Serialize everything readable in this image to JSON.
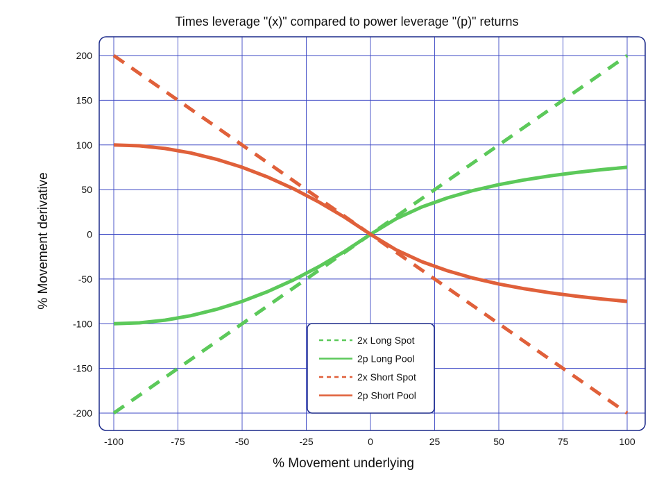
{
  "chart_data": {
    "type": "line",
    "title": "Times leverage \"(x)\" compared to power leverage \"(p)\" returns",
    "xlabel": "% Movement underlying",
    "ylabel": "% Movement derivative",
    "xlim": [
      -100,
      100
    ],
    "ylim": [
      -200,
      200
    ],
    "xticks": [
      -100,
      -75,
      -50,
      -25,
      0,
      25,
      50,
      75,
      100
    ],
    "yticks": [
      200,
      150,
      100,
      50,
      0,
      -50,
      -100,
      -150,
      -200
    ],
    "grid": true,
    "legend_position": "bottom-center",
    "x": [
      -100,
      -90,
      -80,
      -70,
      -60,
      -50,
      -40,
      -30,
      -20,
      -10,
      0,
      10,
      20,
      30,
      40,
      50,
      60,
      70,
      80,
      90,
      100
    ],
    "series": [
      {
        "name": "2x Long Spot",
        "style": "dashed",
        "color": "#5cc95a",
        "values": [
          -200,
          -180,
          -160,
          -140,
          -120,
          -100,
          -80,
          -60,
          -40,
          -20,
          0,
          20,
          40,
          60,
          80,
          100,
          120,
          140,
          160,
          180,
          200
        ]
      },
      {
        "name": "2p Long Pool",
        "style": "solid",
        "color": "#5cc95a",
        "values": [
          -100,
          -99,
          -96,
          -91,
          -84,
          -75,
          -64,
          -51,
          -36,
          -19,
          0,
          17.4,
          30.6,
          40.8,
          49.0,
          55.6,
          60.9,
          65.4,
          69.1,
          72.3,
          75
        ]
      },
      {
        "name": "2x Short Spot",
        "style": "dashed",
        "color": "#e0603a",
        "values": [
          200,
          180,
          160,
          140,
          120,
          100,
          80,
          60,
          40,
          20,
          0,
          -20,
          -40,
          -60,
          -80,
          -100,
          -120,
          -140,
          -160,
          -180,
          -200
        ]
      },
      {
        "name": "2p Short Pool",
        "style": "solid",
        "color": "#e0603a",
        "values": [
          100,
          99,
          96,
          91,
          84,
          75,
          64,
          51,
          36,
          19,
          0,
          -17.4,
          -30.6,
          -40.8,
          -49.0,
          -55.6,
          -60.9,
          -65.4,
          -69.1,
          -72.3,
          -75
        ]
      }
    ]
  },
  "colors": {
    "grid": "#3b47c4",
    "frame": "#1c2a8a"
  }
}
